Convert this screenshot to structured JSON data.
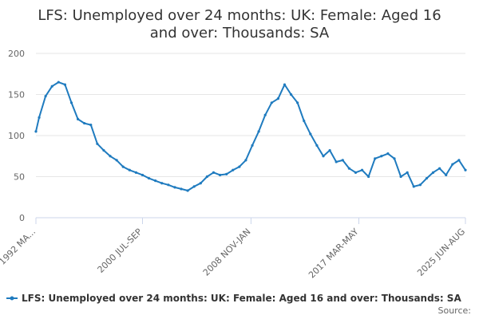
{
  "chart_data": {
    "type": "line",
    "title_lines": [
      "LFS: Unemployed over 24 months: UK: Female: Aged 16",
      "and over: Thousands: SA"
    ],
    "ylim": [
      0,
      200
    ],
    "yticks": [
      0,
      50,
      100,
      150,
      200
    ],
    "x_tick_labels": [
      "1992 MA...",
      "2000 JUL-SEP",
      "2008 NOV-JAN",
      "2017 MAR-MAY",
      "2025 JUN-AUG"
    ],
    "x_tick_years": [
      1992.25,
      2000.5,
      2008.9,
      2017.25,
      2025.5
    ],
    "grid": "horizontal",
    "legend_position": "bottom",
    "series": [
      {
        "name": "LFS: Unemployed over 24 months: UK: Female: Aged 16 and over: Thousands: SA",
        "color": "#1f7bbf",
        "x": [
          1992.25,
          1992.5,
          1993.0,
          1993.5,
          1994.0,
          1994.5,
          1995.0,
          1995.5,
          1996.0,
          1996.5,
          1997.0,
          1997.5,
          1998.0,
          1998.5,
          1999.0,
          1999.5,
          2000.0,
          2000.5,
          2001.0,
          2001.5,
          2002.0,
          2002.5,
          2003.0,
          2003.5,
          2004.0,
          2004.5,
          2005.0,
          2005.5,
          2006.0,
          2006.5,
          2007.0,
          2007.5,
          2008.0,
          2008.5,
          2009.0,
          2009.5,
          2010.0,
          2010.5,
          2011.0,
          2011.5,
          2012.0,
          2012.5,
          2013.0,
          2013.5,
          2014.0,
          2014.5,
          2015.0,
          2015.5,
          2016.0,
          2016.5,
          2017.0,
          2017.5,
          2018.0,
          2018.5,
          2019.0,
          2019.5,
          2020.0,
          2020.5,
          2021.0,
          2021.5,
          2022.0,
          2022.5,
          2023.0,
          2023.5,
          2024.0,
          2024.5,
          2025.0,
          2025.5
        ],
        "values": [
          105,
          122,
          148,
          160,
          165,
          162,
          140,
          120,
          115,
          113,
          90,
          82,
          75,
          70,
          62,
          58,
          55,
          52,
          48,
          45,
          42,
          40,
          37,
          35,
          33,
          38,
          42,
          50,
          55,
          52,
          53,
          58,
          62,
          70,
          88,
          105,
          125,
          140,
          145,
          162,
          150,
          140,
          118,
          102,
          88,
          75,
          82,
          68,
          70,
          60,
          55,
          58,
          50,
          72,
          75,
          78,
          72,
          50,
          55,
          38,
          40,
          48,
          55,
          60,
          52,
          65,
          70,
          58
        ]
      }
    ]
  },
  "legend": {
    "label": "LFS: Unemployed over 24 months: UK: Female: Aged 16 and over: Thousands: SA"
  },
  "source_label": "Source:"
}
